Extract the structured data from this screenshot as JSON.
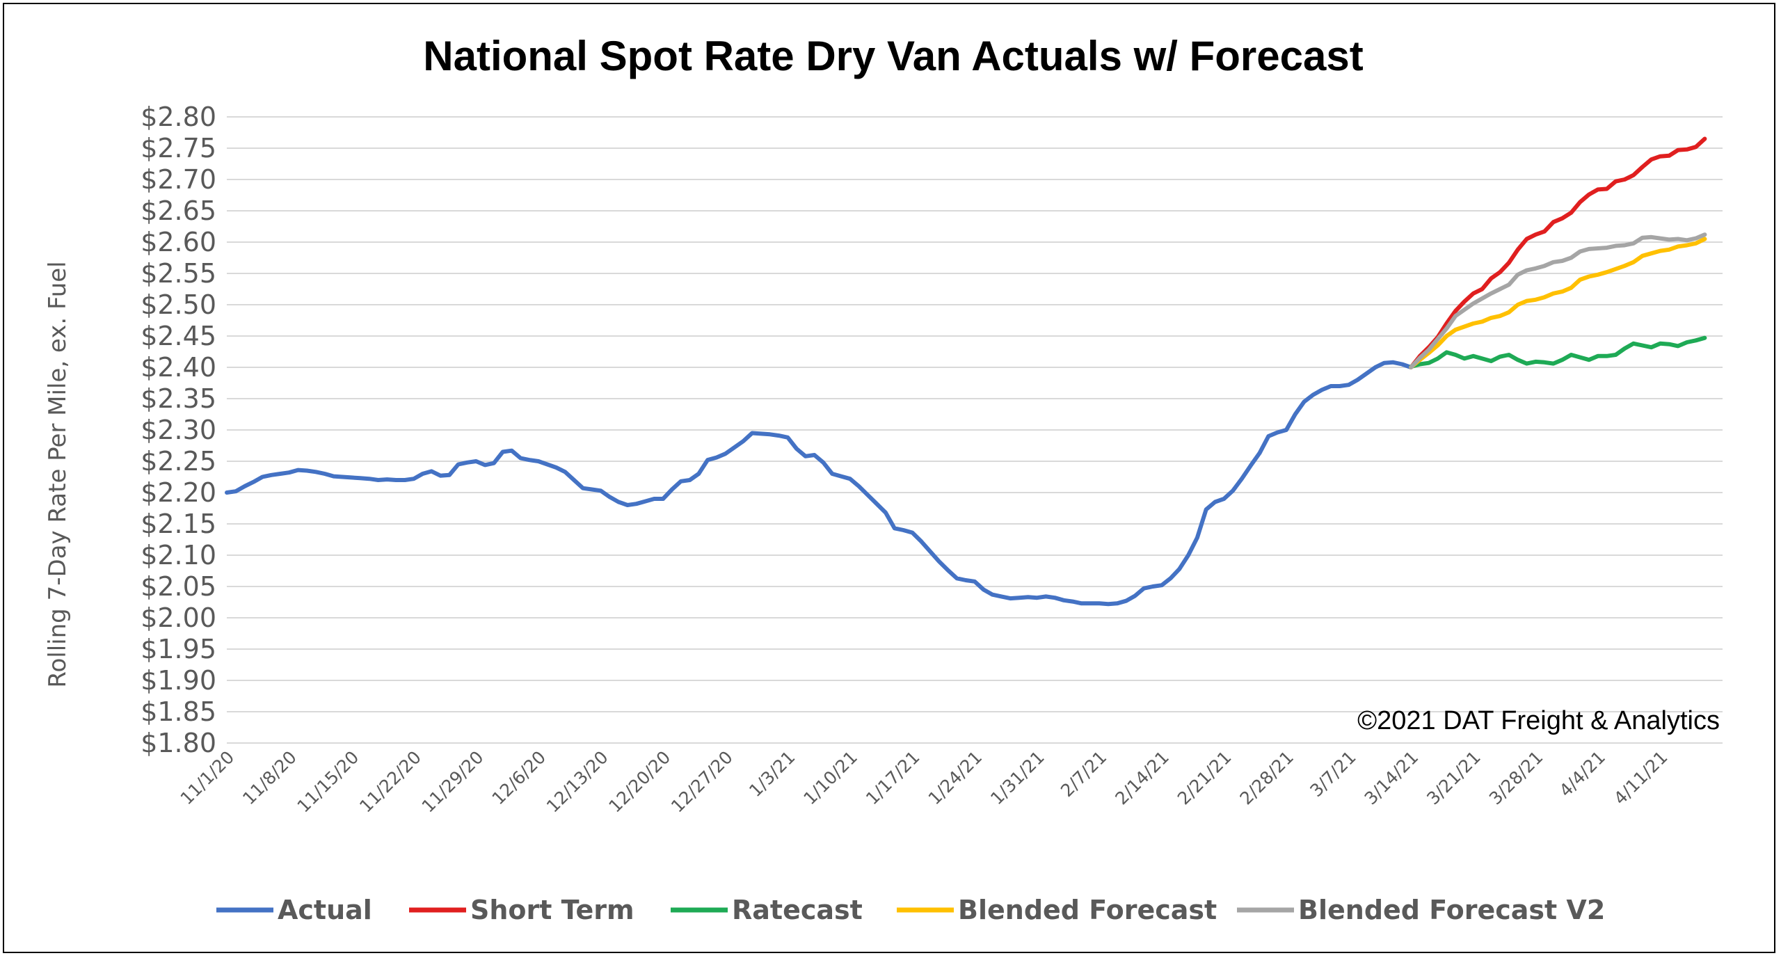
{
  "chart_data": {
    "type": "line",
    "title": "National Spot Rate Dry Van Actuals w/ Forecast",
    "ylabel": "Rolling 7-Day Rate Per Mile, ex. Fuel",
    "xlabel": "",
    "credit": "©2021 DAT Freight & Analytics",
    "ylim": [
      1.8,
      2.8
    ],
    "ytick_step": 0.05,
    "ytick_labels": [
      "$1.80",
      "$1.85",
      "$1.90",
      "$1.95",
      "$2.00",
      "$2.05",
      "$2.10",
      "$2.15",
      "$2.20",
      "$2.25",
      "$2.30",
      "$2.35",
      "$2.40",
      "$2.45",
      "$2.50",
      "$2.55",
      "$2.60",
      "$2.65",
      "$2.70",
      "$2.75",
      "$2.80"
    ],
    "x_start": "11/1/20",
    "x_end": "4/18/21",
    "xtick_labels": [
      "11/1/20",
      "11/8/20",
      "11/15/20",
      "11/22/20",
      "11/29/20",
      "12/6/20",
      "12/13/20",
      "12/20/20",
      "12/27/20",
      "1/3/21",
      "1/10/21",
      "1/17/21",
      "1/24/21",
      "1/31/21",
      "2/7/21",
      "2/14/21",
      "2/21/21",
      "2/28/21",
      "3/7/21",
      "3/14/21",
      "3/21/21",
      "3/28/21",
      "4/4/21",
      "4/11/21"
    ],
    "grid": true,
    "legend_position": "bottom",
    "series": [
      {
        "name": "Actual",
        "color": "#4472C4",
        "points": [
          [
            "11/1/20",
            2.2
          ],
          [
            "11/2/20",
            2.202
          ],
          [
            "11/3/20",
            2.21
          ],
          [
            "11/4/20",
            2.217
          ],
          [
            "11/5/20",
            2.225
          ],
          [
            "11/6/20",
            2.228
          ],
          [
            "11/7/20",
            2.23
          ],
          [
            "11/8/20",
            2.232
          ],
          [
            "11/9/20",
            2.236
          ],
          [
            "11/10/20",
            2.235
          ],
          [
            "11/11/20",
            2.233
          ],
          [
            "11/12/20",
            2.23
          ],
          [
            "11/13/20",
            2.226
          ],
          [
            "11/14/20",
            2.225
          ],
          [
            "11/15/20",
            2.224
          ],
          [
            "11/16/20",
            2.223
          ],
          [
            "11/17/20",
            2.222
          ],
          [
            "11/18/20",
            2.22
          ],
          [
            "11/19/20",
            2.221
          ],
          [
            "11/20/20",
            2.22
          ],
          [
            "11/21/20",
            2.22
          ],
          [
            "11/22/20",
            2.222
          ],
          [
            "11/23/20",
            2.23
          ],
          [
            "11/24/20",
            2.234
          ],
          [
            "11/25/20",
            2.227
          ],
          [
            "11/26/20",
            2.228
          ],
          [
            "11/27/20",
            2.245
          ],
          [
            "11/28/20",
            2.248
          ],
          [
            "11/29/20",
            2.25
          ],
          [
            "11/30/20",
            2.244
          ],
          [
            "12/1/20",
            2.247
          ],
          [
            "12/2/20",
            2.265
          ],
          [
            "12/3/20",
            2.267
          ],
          [
            "12/4/20",
            2.255
          ],
          [
            "12/5/20",
            2.252
          ],
          [
            "12/6/20",
            2.25
          ],
          [
            "12/7/20",
            2.245
          ],
          [
            "12/8/20",
            2.24
          ],
          [
            "12/9/20",
            2.233
          ],
          [
            "12/10/20",
            2.22
          ],
          [
            "12/11/20",
            2.207
          ],
          [
            "12/12/20",
            2.205
          ],
          [
            "12/13/20",
            2.203
          ],
          [
            "12/14/20",
            2.193
          ],
          [
            "12/15/20",
            2.185
          ],
          [
            "12/16/20",
            2.18
          ],
          [
            "12/17/20",
            2.182
          ],
          [
            "12/18/20",
            2.186
          ],
          [
            "12/19/20",
            2.19
          ],
          [
            "12/20/20",
            2.19
          ],
          [
            "12/21/20",
            2.205
          ],
          [
            "12/22/20",
            2.218
          ],
          [
            "12/23/20",
            2.22
          ],
          [
            "12/24/20",
            2.23
          ],
          [
            "12/25/20",
            2.252
          ],
          [
            "12/26/20",
            2.256
          ],
          [
            "12/27/20",
            2.262
          ],
          [
            "12/28/20",
            2.272
          ],
          [
            "12/29/20",
            2.282
          ],
          [
            "12/30/20",
            2.295
          ],
          [
            "12/31/20",
            2.294
          ],
          [
            "1/1/21",
            2.293
          ],
          [
            "1/2/21",
            2.291
          ],
          [
            "1/3/21",
            2.288
          ],
          [
            "1/4/21",
            2.27
          ],
          [
            "1/5/21",
            2.258
          ],
          [
            "1/6/21",
            2.26
          ],
          [
            "1/7/21",
            2.248
          ],
          [
            "1/8/21",
            2.23
          ],
          [
            "1/9/21",
            2.226
          ],
          [
            "1/10/21",
            2.222
          ],
          [
            "1/11/21",
            2.21
          ],
          [
            "1/12/21",
            2.196
          ],
          [
            "1/13/21",
            2.182
          ],
          [
            "1/14/21",
            2.168
          ],
          [
            "1/15/21",
            2.143
          ],
          [
            "1/16/21",
            2.14
          ],
          [
            "1/17/21",
            2.136
          ],
          [
            "1/18/21",
            2.122
          ],
          [
            "1/19/21",
            2.106
          ],
          [
            "1/20/21",
            2.09
          ],
          [
            "1/21/21",
            2.076
          ],
          [
            "1/22/21",
            2.063
          ],
          [
            "1/23/21",
            2.06
          ],
          [
            "1/24/21",
            2.058
          ],
          [
            "1/25/21",
            2.045
          ],
          [
            "1/26/21",
            2.037
          ],
          [
            "1/27/21",
            2.034
          ],
          [
            "1/28/21",
            2.031
          ],
          [
            "1/29/21",
            2.032
          ],
          [
            "1/30/21",
            2.033
          ],
          [
            "1/31/21",
            2.032
          ],
          [
            "2/1/21",
            2.034
          ],
          [
            "2/2/21",
            2.032
          ],
          [
            "2/3/21",
            2.028
          ],
          [
            "2/4/21",
            2.026
          ],
          [
            "2/5/21",
            2.023
          ],
          [
            "2/6/21",
            2.023
          ],
          [
            "2/7/21",
            2.023
          ],
          [
            "2/8/21",
            2.022
          ],
          [
            "2/9/21",
            2.023
          ],
          [
            "2/10/21",
            2.027
          ],
          [
            "2/11/21",
            2.035
          ],
          [
            "2/12/21",
            2.047
          ],
          [
            "2/13/21",
            2.05
          ],
          [
            "2/14/21",
            2.052
          ],
          [
            "2/15/21",
            2.063
          ],
          [
            "2/16/21",
            2.078
          ],
          [
            "2/17/21",
            2.1
          ],
          [
            "2/18/21",
            2.128
          ],
          [
            "2/19/21",
            2.173
          ],
          [
            "2/20/21",
            2.185
          ],
          [
            "2/21/21",
            2.19
          ],
          [
            "2/22/21",
            2.203
          ],
          [
            "2/23/21",
            2.222
          ],
          [
            "2/24/21",
            2.243
          ],
          [
            "2/25/21",
            2.263
          ],
          [
            "2/26/21",
            2.29
          ],
          [
            "2/27/21",
            2.296
          ],
          [
            "2/28/21",
            2.3
          ],
          [
            "3/1/21",
            2.325
          ],
          [
            "3/2/21",
            2.345
          ],
          [
            "3/3/21",
            2.356
          ],
          [
            "3/4/21",
            2.364
          ],
          [
            "3/5/21",
            2.37
          ],
          [
            "3/6/21",
            2.37
          ],
          [
            "3/7/21",
            2.372
          ],
          [
            "3/8/21",
            2.38
          ],
          [
            "3/9/21",
            2.39
          ],
          [
            "3/10/21",
            2.4
          ],
          [
            "3/11/21",
            2.407
          ],
          [
            "3/12/21",
            2.408
          ],
          [
            "3/13/21",
            2.405
          ],
          [
            "3/14/21",
            2.4
          ]
        ]
      },
      {
        "name": "Short Term",
        "color": "#E01F1F",
        "points": [
          [
            "3/14/21",
            2.4
          ],
          [
            "3/15/21",
            2.418
          ],
          [
            "3/16/21",
            2.432
          ],
          [
            "3/17/21",
            2.448
          ],
          [
            "3/18/21",
            2.47
          ],
          [
            "3/19/21",
            2.49
          ],
          [
            "3/20/21",
            2.505
          ],
          [
            "3/21/21",
            2.518
          ],
          [
            "3/22/21",
            2.525
          ],
          [
            "3/23/21",
            2.542
          ],
          [
            "3/24/21",
            2.552
          ],
          [
            "3/25/21",
            2.567
          ],
          [
            "3/26/21",
            2.588
          ],
          [
            "3/27/21",
            2.605
          ],
          [
            "3/28/21",
            2.612
          ],
          [
            "3/29/21",
            2.617
          ],
          [
            "3/30/21",
            2.632
          ],
          [
            "3/31/21",
            2.638
          ],
          [
            "4/1/21",
            2.647
          ],
          [
            "4/2/21",
            2.664
          ],
          [
            "4/3/21",
            2.676
          ],
          [
            "4/4/21",
            2.684
          ],
          [
            "4/5/21",
            2.685
          ],
          [
            "4/6/21",
            2.697
          ],
          [
            "4/7/21",
            2.7
          ],
          [
            "4/8/21",
            2.707
          ],
          [
            "4/9/21",
            2.72
          ],
          [
            "4/10/21",
            2.732
          ],
          [
            "4/11/21",
            2.737
          ],
          [
            "4/12/21",
            2.738
          ],
          [
            "4/13/21",
            2.747
          ],
          [
            "4/14/21",
            2.748
          ],
          [
            "4/15/21",
            2.752
          ],
          [
            "4/16/21",
            2.765
          ]
        ]
      },
      {
        "name": "Ratecast",
        "color": "#1EAA55",
        "points": [
          [
            "3/14/21",
            2.401
          ],
          [
            "3/15/21",
            2.405
          ],
          [
            "3/16/21",
            2.407
          ],
          [
            "3/17/21",
            2.414
          ],
          [
            "3/18/21",
            2.424
          ],
          [
            "3/19/21",
            2.42
          ],
          [
            "3/20/21",
            2.414
          ],
          [
            "3/21/21",
            2.418
          ],
          [
            "3/22/21",
            2.414
          ],
          [
            "3/23/21",
            2.41
          ],
          [
            "3/24/21",
            2.417
          ],
          [
            "3/25/21",
            2.42
          ],
          [
            "3/26/21",
            2.412
          ],
          [
            "3/27/21",
            2.406
          ],
          [
            "3/28/21",
            2.409
          ],
          [
            "3/29/21",
            2.408
          ],
          [
            "3/30/21",
            2.406
          ],
          [
            "3/31/21",
            2.412
          ],
          [
            "4/1/21",
            2.42
          ],
          [
            "4/2/21",
            2.416
          ],
          [
            "4/3/21",
            2.412
          ],
          [
            "4/4/21",
            2.418
          ],
          [
            "4/5/21",
            2.418
          ],
          [
            "4/6/21",
            2.42
          ],
          [
            "4/7/21",
            2.43
          ],
          [
            "4/8/21",
            2.438
          ],
          [
            "4/9/21",
            2.435
          ],
          [
            "4/10/21",
            2.432
          ],
          [
            "4/11/21",
            2.438
          ],
          [
            "4/12/21",
            2.437
          ],
          [
            "4/13/21",
            2.434
          ],
          [
            "4/14/21",
            2.44
          ],
          [
            "4/15/21",
            2.443
          ],
          [
            "4/16/21",
            2.447
          ]
        ]
      },
      {
        "name": "Blended Forecast",
        "color": "#FFC000",
        "points": [
          [
            "3/14/21",
            2.4
          ],
          [
            "3/15/21",
            2.412
          ],
          [
            "3/16/21",
            2.423
          ],
          [
            "3/17/21",
            2.435
          ],
          [
            "3/18/21",
            2.45
          ],
          [
            "3/19/21",
            2.46
          ],
          [
            "3/20/21",
            2.465
          ],
          [
            "3/21/21",
            2.47
          ],
          [
            "3/22/21",
            2.473
          ],
          [
            "3/23/21",
            2.479
          ],
          [
            "3/24/21",
            2.482
          ],
          [
            "3/25/21",
            2.488
          ],
          [
            "3/26/21",
            2.5
          ],
          [
            "3/27/21",
            2.506
          ],
          [
            "3/28/21",
            2.508
          ],
          [
            "3/29/21",
            2.512
          ],
          [
            "3/30/21",
            2.518
          ],
          [
            "3/31/21",
            2.521
          ],
          [
            "4/1/21",
            2.527
          ],
          [
            "4/2/21",
            2.54
          ],
          [
            "4/3/21",
            2.545
          ],
          [
            "4/4/21",
            2.548
          ],
          [
            "4/5/21",
            2.552
          ],
          [
            "4/6/21",
            2.557
          ],
          [
            "4/7/21",
            2.562
          ],
          [
            "4/8/21",
            2.568
          ],
          [
            "4/9/21",
            2.578
          ],
          [
            "4/10/21",
            2.582
          ],
          [
            "4/11/21",
            2.586
          ],
          [
            "4/12/21",
            2.588
          ],
          [
            "4/13/21",
            2.593
          ],
          [
            "4/14/21",
            2.595
          ],
          [
            "4/15/21",
            2.598
          ],
          [
            "4/16/21",
            2.605
          ]
        ]
      },
      {
        "name": "Blended Forecast V2",
        "color": "#A5A5A5",
        "points": [
          [
            "3/14/21",
            2.4
          ],
          [
            "3/15/21",
            2.415
          ],
          [
            "3/16/21",
            2.428
          ],
          [
            "3/17/21",
            2.445
          ],
          [
            "3/18/21",
            2.462
          ],
          [
            "3/19/21",
            2.482
          ],
          [
            "3/20/21",
            2.492
          ],
          [
            "3/21/21",
            2.502
          ],
          [
            "3/22/21",
            2.51
          ],
          [
            "3/23/21",
            2.518
          ],
          [
            "3/24/21",
            2.525
          ],
          [
            "3/25/21",
            2.532
          ],
          [
            "3/26/21",
            2.548
          ],
          [
            "3/27/21",
            2.555
          ],
          [
            "3/28/21",
            2.558
          ],
          [
            "3/29/21",
            2.562
          ],
          [
            "3/30/21",
            2.568
          ],
          [
            "3/31/21",
            2.57
          ],
          [
            "4/1/21",
            2.575
          ],
          [
            "4/2/21",
            2.585
          ],
          [
            "4/3/21",
            2.589
          ],
          [
            "4/4/21",
            2.59
          ],
          [
            "4/5/21",
            2.591
          ],
          [
            "4/6/21",
            2.594
          ],
          [
            "4/7/21",
            2.595
          ],
          [
            "4/8/21",
            2.598
          ],
          [
            "4/9/21",
            2.607
          ],
          [
            "4/10/21",
            2.608
          ],
          [
            "4/11/21",
            2.606
          ],
          [
            "4/12/21",
            2.604
          ],
          [
            "4/13/21",
            2.605
          ],
          [
            "4/14/21",
            2.603
          ],
          [
            "4/15/21",
            2.606
          ],
          [
            "4/16/21",
            2.612
          ]
        ]
      }
    ]
  }
}
